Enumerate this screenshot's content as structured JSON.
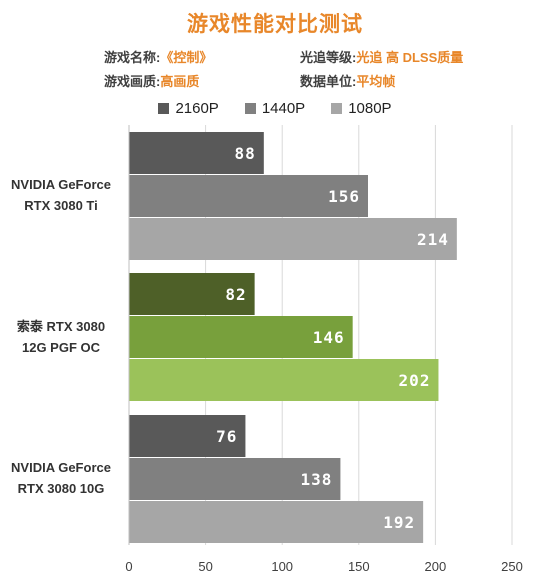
{
  "title": "游戏性能对比测试",
  "info": {
    "game_label": "游戏名称:",
    "game_value": "《控制》",
    "quality_label": "游戏画质:",
    "quality_value": "高画质",
    "rt_label": "光追等级:",
    "rt_value": "光追 高 DLSS质量",
    "unit_label": "数据单位:",
    "unit_value": "平均帧"
  },
  "chart_data": {
    "type": "bar",
    "orientation": "horizontal",
    "categories": [
      "NVIDIA GeForce\nRTX 3080 Ti",
      "索泰 RTX 3080\n12G PGF OC",
      "NVIDIA GeForce\nRTX 3080 10G"
    ],
    "series": [
      {
        "name": "2160P",
        "values": [
          88,
          82,
          76
        ]
      },
      {
        "name": "1440P",
        "values": [
          156,
          146,
          138
        ]
      },
      {
        "name": "1080P",
        "values": [
          214,
          202,
          192
        ]
      }
    ],
    "xlim": [
      0,
      250
    ],
    "xticks": [
      0,
      50,
      100,
      150,
      200,
      250
    ],
    "grid": true,
    "legend_position": "top",
    "colors": {
      "default": [
        "#595959",
        "#808080",
        "#a6a6a6"
      ],
      "highlight": [
        "#4e6028",
        "#78a03c",
        "#9bc25a"
      ]
    },
    "highlight_index": 1
  }
}
